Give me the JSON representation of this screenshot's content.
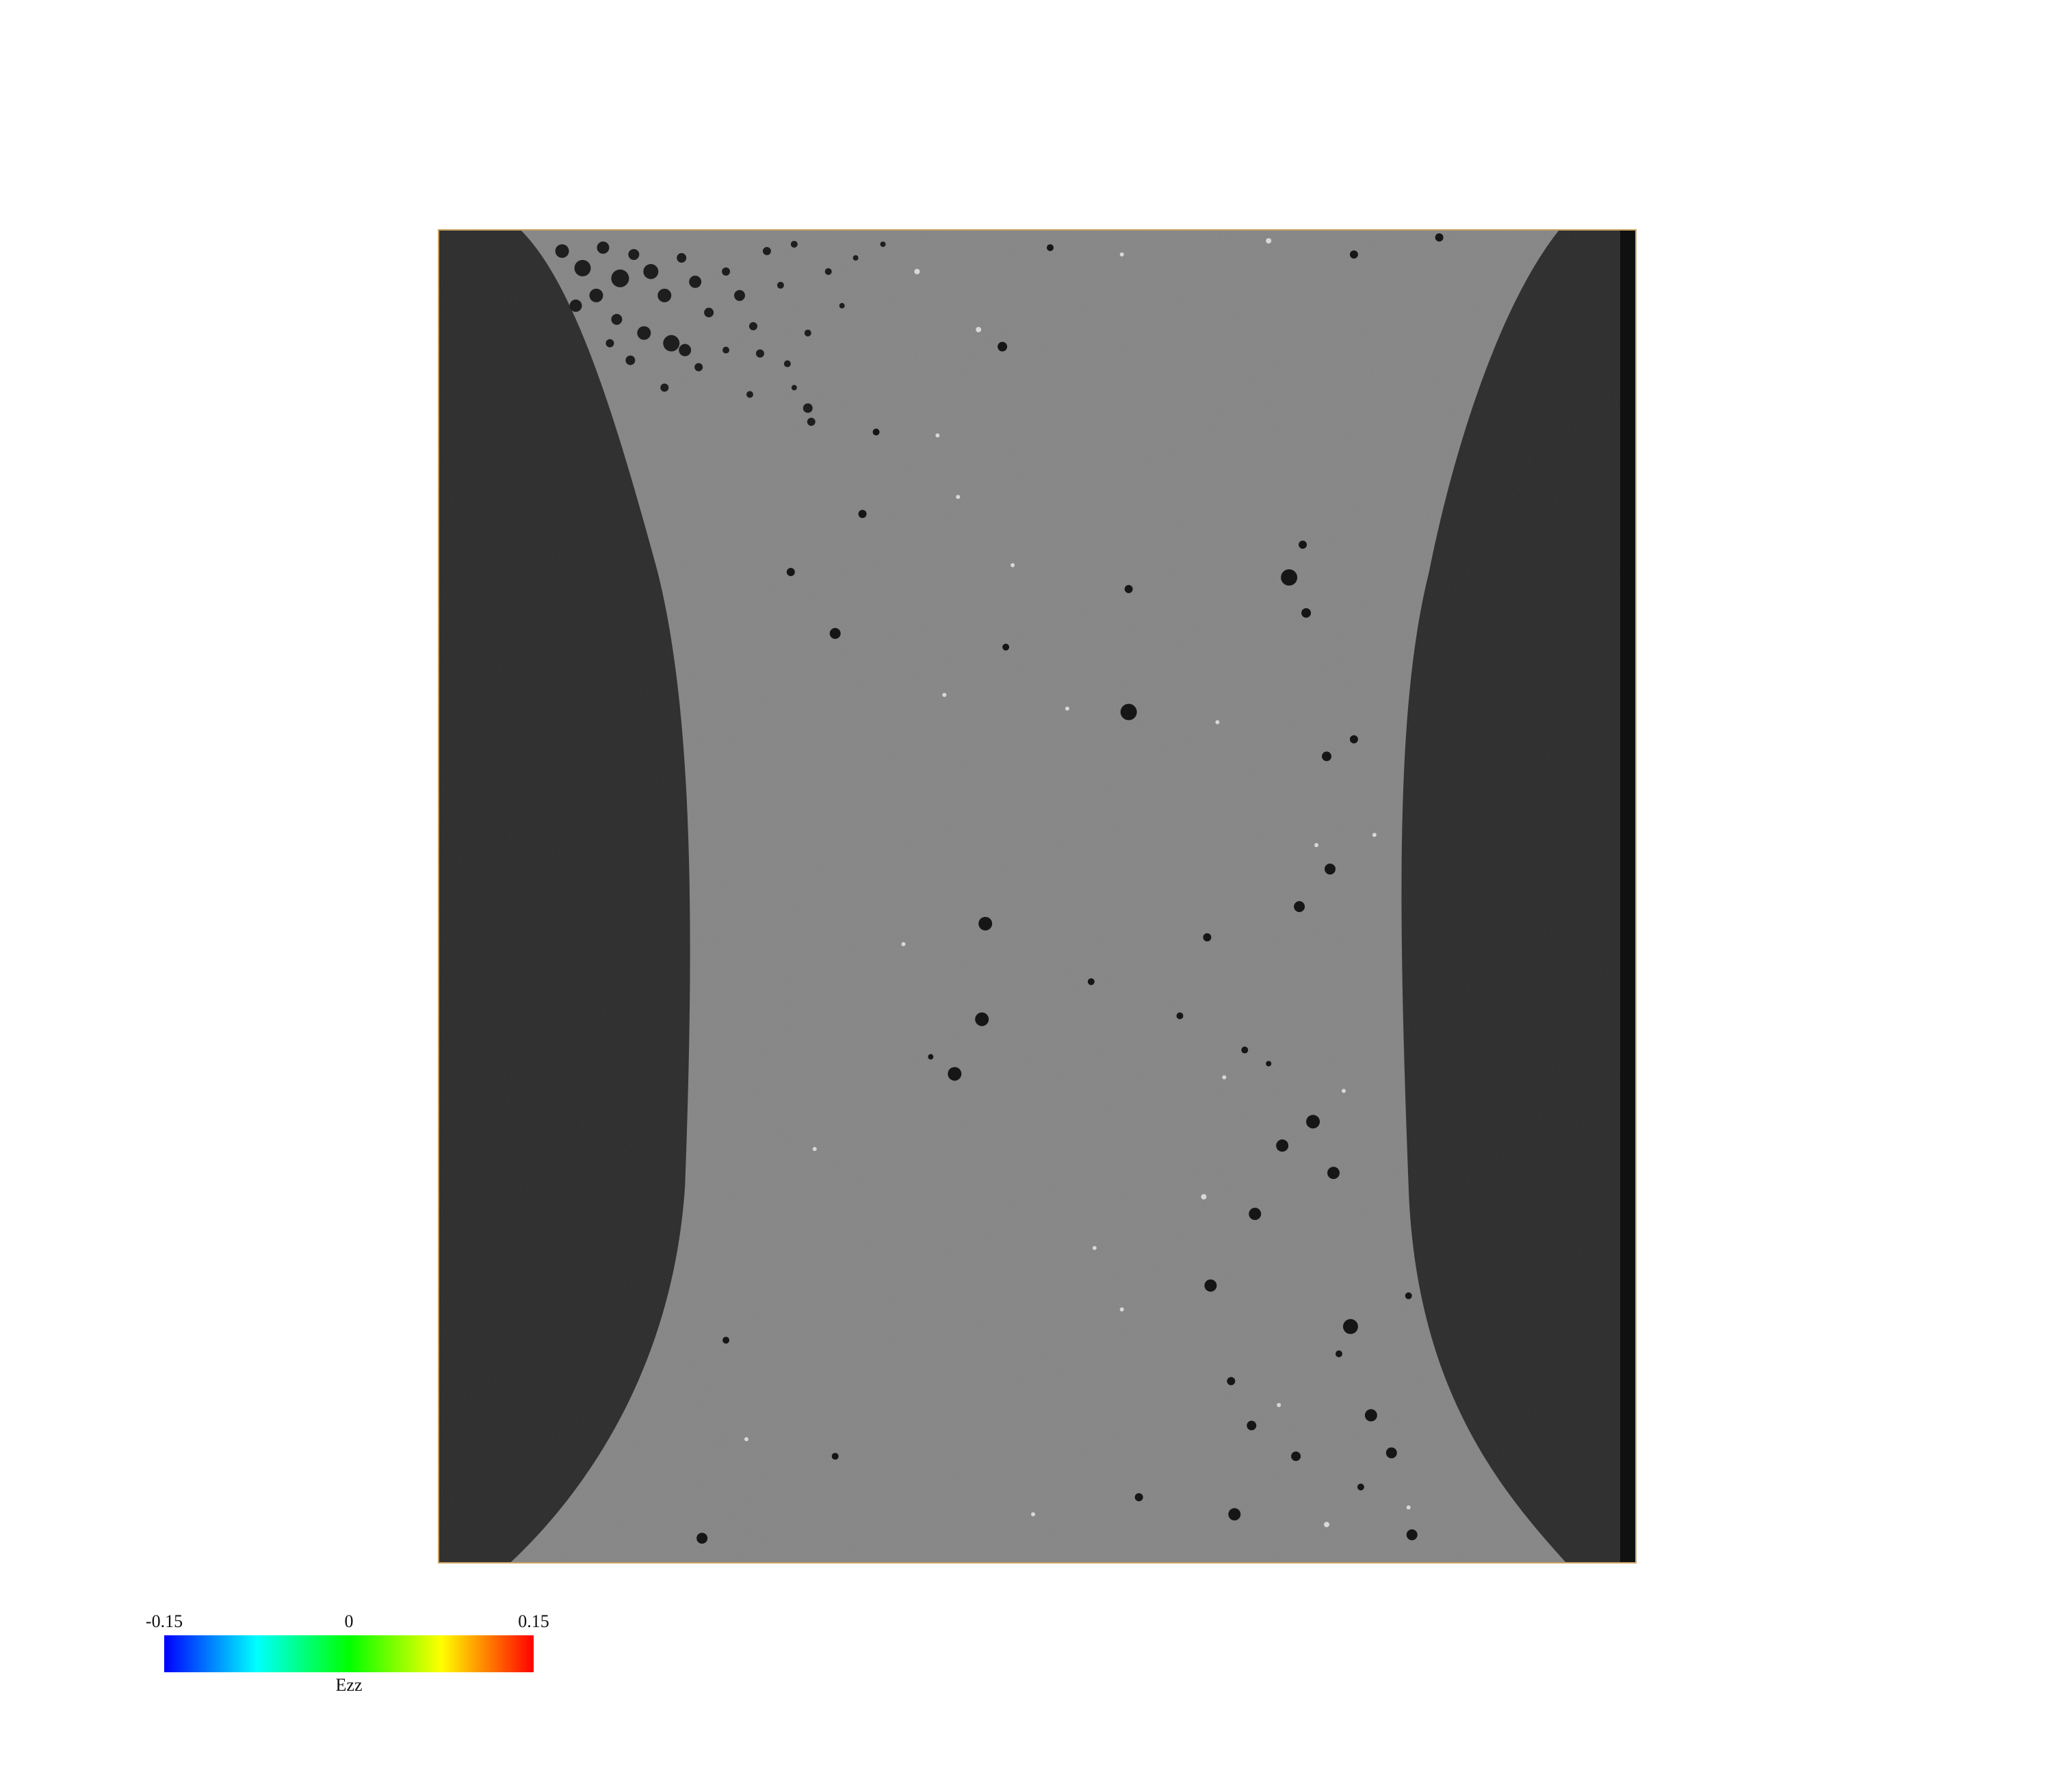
{
  "image": {
    "background_color": "#ffffff",
    "frame_border_color": "#c8a060",
    "void_color": "#2a2a2a",
    "specimen_color": "#858585"
  },
  "colorbar": {
    "title": "Ezz",
    "min_label": "-0.15",
    "mid_label": "0",
    "max_label": "0.15",
    "min": -0.15,
    "max": 0.15,
    "colors": [
      "#0000ff",
      "#00ffff",
      "#00ff00",
      "#ffff00",
      "#ff0000"
    ]
  }
}
